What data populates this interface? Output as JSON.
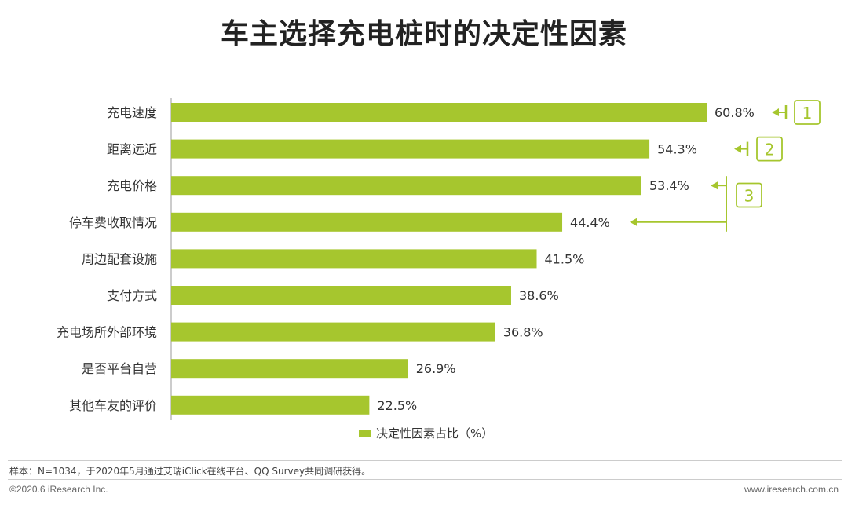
{
  "title": "车主选择充电桩时的决定性因素",
  "chart_data": {
    "type": "bar",
    "orientation": "horizontal",
    "categories": [
      "充电速度",
      "距离远近",
      "充电价格",
      "停车费收取情况",
      "周边配套设施",
      "支付方式",
      "充电场所外部环境",
      "是否平台自营",
      "其他车友的评价"
    ],
    "series": [
      {
        "name": "决定性因素占比（%）",
        "values": [
          60.8,
          54.3,
          53.4,
          44.4,
          41.5,
          38.6,
          36.8,
          26.9,
          22.5
        ]
      }
    ],
    "value_labels": [
      "60.8%",
      "54.3%",
      "53.4%",
      "44.4%",
      "41.5%",
      "38.6%",
      "36.8%",
      "26.9%",
      "22.5%"
    ],
    "xlim": [
      0,
      70
    ],
    "grid": false,
    "legend_position": "bottom",
    "color": "#a6c62e",
    "annotations": [
      {
        "label": "1",
        "categories": [
          "充电速度"
        ]
      },
      {
        "label": "2",
        "categories": [
          "距离远近"
        ]
      },
      {
        "label": "3",
        "categories": [
          "充电价格",
          "停车费收取情况"
        ]
      }
    ]
  },
  "legend": {
    "label": "决定性因素占比（%）"
  },
  "note": "样本：N=1034，于2020年5月通过艾瑞iClick在线平台、QQ Survey共同调研获得。",
  "footer": {
    "left": "©2020.6 iResearch Inc.",
    "right": "www.iresearch.com.cn"
  }
}
